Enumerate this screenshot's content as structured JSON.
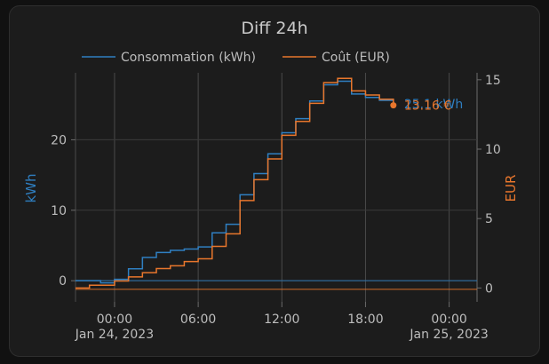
{
  "card": {
    "title": "Diff 24h"
  },
  "chart_data": {
    "type": "line",
    "step": true,
    "title": "Diff 24h",
    "x_tick_labels": [
      {
        "label": "00:00",
        "sub": "Jan 24, 2023",
        "hour": 0
      },
      {
        "label": "06:00",
        "sub": "",
        "hour": 6
      },
      {
        "label": "12:00",
        "sub": "",
        "hour": 12
      },
      {
        "label": "18:00",
        "sub": "",
        "hour": 18
      },
      {
        "label": "00:00",
        "sub": "Jan 25, 2023",
        "hour": 24
      }
    ],
    "xlim": [
      -2.8,
      26
    ],
    "y_left": {
      "label": "kWh",
      "ylim": [
        -3,
        29.5
      ],
      "ticks": [
        0,
        10,
        20
      ],
      "color": "#2f7fc1"
    },
    "y_right": {
      "label": "EUR",
      "ylim": [
        -1,
        15.5
      ],
      "ticks": [
        0,
        5,
        10,
        15
      ],
      "color": "#e8762c"
    },
    "series": [
      {
        "name": "Consommation (kWh)",
        "axis": "left",
        "color": "#2f7fc1",
        "x": [
          -2.8,
          -1.8,
          -1,
          0,
          1,
          2,
          3,
          4,
          5,
          6,
          7,
          8,
          9,
          10,
          11,
          12,
          13,
          14,
          15,
          16,
          17,
          18,
          19,
          20
        ],
        "values": [
          0,
          0,
          -0.3,
          0.2,
          1.7,
          3.3,
          4.0,
          4.3,
          4.5,
          4.8,
          6.8,
          8.0,
          12.2,
          15.2,
          18.0,
          21.0,
          23.0,
          25.5,
          27.8,
          28.3,
          26.5,
          26.0,
          25.6,
          25.1
        ],
        "end_label": "25.1 kWh",
        "end_x": 20,
        "baseline": 0
      },
      {
        "name": "Coût (EUR)",
        "axis": "right",
        "color": "#e8762c",
        "x": [
          -2.8,
          -1.8,
          -1,
          0,
          1,
          2,
          3,
          4,
          5,
          6,
          7,
          8,
          9,
          10,
          11,
          12,
          13,
          14,
          15,
          16,
          17,
          18,
          19,
          20
        ],
        "values": [
          0,
          0.2,
          0.2,
          0.5,
          0.8,
          1.1,
          1.4,
          1.6,
          1.9,
          2.1,
          3.0,
          3.9,
          6.3,
          7.8,
          9.3,
          11.0,
          12.0,
          13.3,
          14.8,
          15.1,
          14.2,
          13.9,
          13.6,
          13.16
        ],
        "end_label": "13.16 €",
        "end_x": 20,
        "baseline": -0.1
      }
    ],
    "legend_position": "top"
  }
}
